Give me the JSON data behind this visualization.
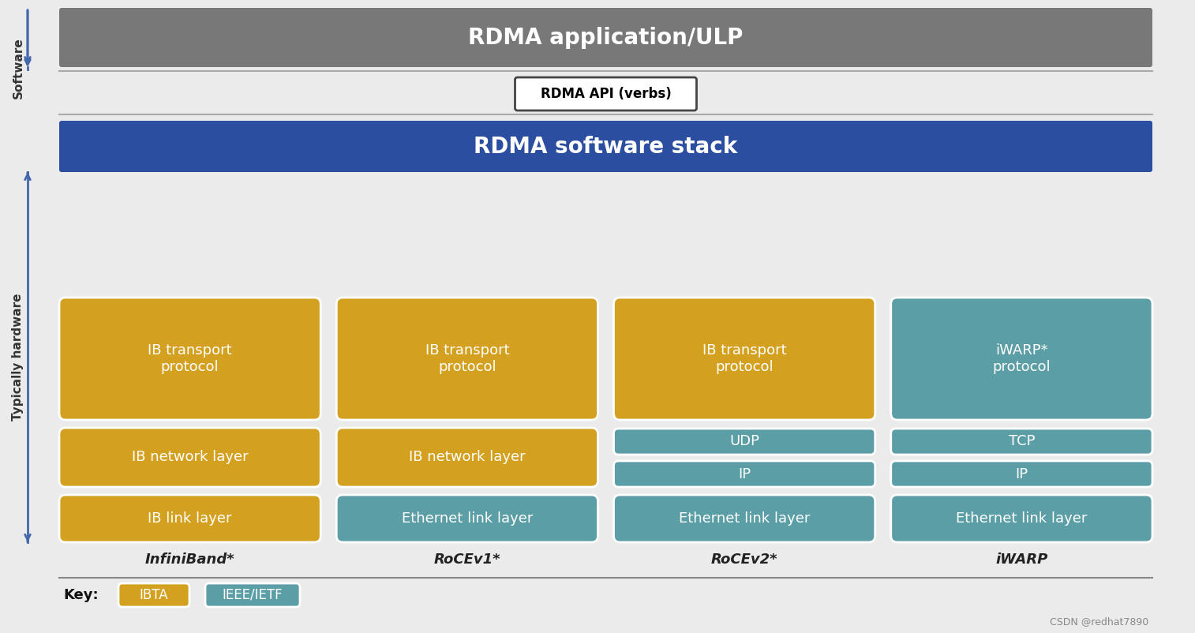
{
  "title": "RDMA application/ULP",
  "api_label": "RDMA API (verbs)",
  "stack_label": "RDMA software stack",
  "columns": [
    "InfiniBand*",
    "RoCEv1*",
    "RoCEv2*",
    "iWARP"
  ],
  "colors": {
    "gold": "#D4A020",
    "teal": "#5B9EA6",
    "header_gray": "#787878",
    "header_blue": "#2B4EA0",
    "white": "#FFFFFF",
    "bg": "#EBEBEB",
    "text_dark": "#222222",
    "arrow_blue": "#4466AA"
  },
  "rows": {
    "transport": {
      "col0": {
        "text": "IB transport\nprotocol",
        "color": "gold"
      },
      "col1": {
        "text": "IB transport\nprotocol",
        "color": "gold"
      },
      "col2": {
        "text": "IB transport\nprotocol",
        "color": "gold"
      },
      "col3": {
        "text": "iWARP*\nprotocol",
        "color": "teal"
      }
    },
    "network": {
      "col0": {
        "text": "IB network layer",
        "color": "gold"
      },
      "col1": {
        "text": "IB network layer",
        "color": "gold"
      },
      "col2_top": {
        "text": "UDP",
        "color": "teal"
      },
      "col2_mid": {
        "text": "IP",
        "color": "teal"
      },
      "col3_top": {
        "text": "TCP",
        "color": "teal"
      },
      "col3_mid": {
        "text": "IP",
        "color": "teal"
      }
    },
    "link": {
      "col0": {
        "text": "IB link layer",
        "color": "gold"
      },
      "col1": {
        "text": "Ethernet link layer",
        "color": "teal"
      },
      "col2": {
        "text": "Ethernet link layer",
        "color": "teal"
      },
      "col3": {
        "text": "Ethernet link layer",
        "color": "teal"
      }
    }
  },
  "key": {
    "ibta": {
      "label": "IBTA",
      "color": "gold"
    },
    "ieee": {
      "label": "IEEE/IETF",
      "color": "teal"
    }
  },
  "watermark": "CSDN @redhat7890"
}
